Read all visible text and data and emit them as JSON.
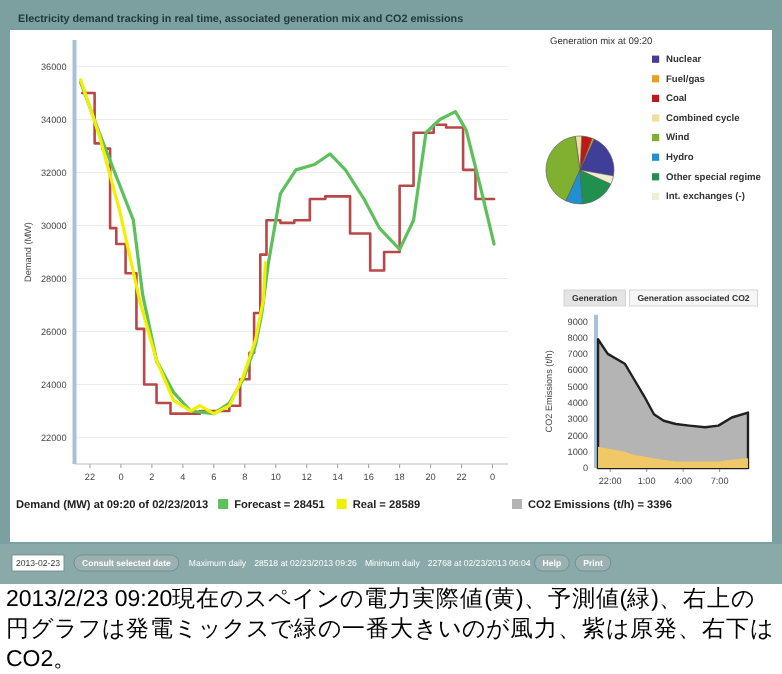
{
  "chart_data": [
    {
      "type": "line",
      "title": "Electricity demand tracking in real time, associated generation mix and CO2 emissions",
      "ylabel": "Demand (MW)",
      "legend_title": "Demand (MW) at 09:20 of 02/23/2013",
      "xlim": [
        "2013-02-22T21:00",
        "2013-02-24T01:00"
      ],
      "ylim": [
        21000,
        37000
      ],
      "xticks": [
        {
          "value": "2013-02-22T22:00",
          "label": "22"
        },
        {
          "value": "2013-02-23T00:00",
          "label": "0"
        },
        {
          "value": "2013-02-23T02:00",
          "label": "2"
        },
        {
          "value": "2013-02-23T04:00",
          "label": "4"
        },
        {
          "value": "2013-02-23T06:00",
          "label": "6"
        },
        {
          "value": "2013-02-23T08:00",
          "label": "8"
        },
        {
          "value": "2013-02-23T10:00",
          "label": "10"
        },
        {
          "value": "2013-02-23T12:00",
          "label": "12"
        },
        {
          "value": "2013-02-23T14:00",
          "label": "14"
        },
        {
          "value": "2013-02-23T16:00",
          "label": "16"
        },
        {
          "value": "2013-02-23T18:00",
          "label": "18"
        },
        {
          "value": "2013-02-23T20:00",
          "label": "20"
        },
        {
          "value": "2013-02-23T22:00",
          "label": "22"
        },
        {
          "value": "2013-02-24T00:00",
          "label": "0"
        }
      ],
      "yticks": [
        22000,
        24000,
        26000,
        28000,
        30000,
        32000,
        34000,
        36000
      ],
      "grid": "y",
      "legend": "bottom",
      "series": [
        {
          "type": "step",
          "color": "#b84848",
          "x": [
            "2013-02-22T21:30",
            "2013-02-22T22:18",
            "2013-02-22T22:48",
            "2013-02-22T23:18",
            "2013-02-22T23:42",
            "2013-02-23T00:18",
            "2013-02-23T01:00",
            "2013-02-23T01:30",
            "2013-02-23T02:18",
            "2013-02-23T03:12",
            "2013-02-23T05:06",
            "2013-02-23T06:00",
            "2013-02-23T07:00",
            "2013-02-23T07:42",
            "2013-02-23T08:18",
            "2013-02-23T08:36",
            "2013-02-23T09:00",
            "2013-02-23T09:24",
            "2013-02-23T10:18",
            "2013-02-23T11:12",
            "2013-02-23T12:12",
            "2013-02-23T13:12",
            "2013-02-23T14:48",
            "2013-02-23T16:06",
            "2013-02-23T17:00",
            "2013-02-23T18:00",
            "2013-02-23T18:54",
            "2013-02-23T20:12",
            "2013-02-23T21:00",
            "2013-02-23T22:06",
            "2013-02-23T22:54",
            "2013-02-24T00:06"
          ],
          "values": [
            35000,
            33100,
            32900,
            29900,
            29300,
            28200,
            26100,
            24000,
            23300,
            22900,
            23000,
            23000,
            23200,
            24200,
            25200,
            26700,
            28900,
            30200,
            30100,
            30200,
            31000,
            31100,
            29700,
            28300,
            29000,
            31500,
            33500,
            33800,
            33700,
            32100,
            31000,
            31000
          ]
        },
        {
          "name": "Forecast = 28451",
          "color": "#5cc05c",
          "x": [
            "2013-02-22T21:24",
            "2013-02-22T22:36",
            "2013-02-23T00:48",
            "2013-02-23T01:24",
            "2013-02-23T02:18",
            "2013-02-23T03:24",
            "2013-02-23T04:30",
            "2013-02-23T06:00",
            "2013-02-23T07:00",
            "2013-02-23T07:54",
            "2013-02-23T08:42",
            "2013-02-23T09:06",
            "2013-02-23T09:30",
            "2013-02-23T10:18",
            "2013-02-23T11:18",
            "2013-02-23T12:30",
            "2013-02-23T13:30",
            "2013-02-23T14:30",
            "2013-02-23T15:42",
            "2013-02-23T16:42",
            "2013-02-23T18:00",
            "2013-02-23T18:54",
            "2013-02-23T19:42",
            "2013-02-23T20:36",
            "2013-02-23T21:36",
            "2013-02-23T22:18",
            "2013-02-23T23:12",
            "2013-02-24T00:06"
          ],
          "values": [
            35400,
            33500,
            30200,
            27400,
            24900,
            23700,
            23000,
            22900,
            23300,
            24200,
            25500,
            26700,
            28500,
            31200,
            32100,
            32300,
            32700,
            32100,
            31000,
            29900,
            29100,
            30200,
            33500,
            34000,
            34300,
            33600,
            31500,
            29300
          ]
        },
        {
          "name": "Real = 28589",
          "color": "#f0f000",
          "x": [
            "2013-02-22T21:24",
            "2013-02-22T22:36",
            "2013-02-22T23:54",
            "2013-02-23T01:12",
            "2013-02-23T02:18",
            "2013-02-23T03:24",
            "2013-02-23T04:30",
            "2013-02-23T05:06",
            "2013-02-23T06:00",
            "2013-02-23T07:00",
            "2013-02-23T07:54",
            "2013-02-23T08:42",
            "2013-02-23T09:12",
            "2013-02-23T09:20"
          ],
          "values": [
            35500,
            33400,
            30600,
            27200,
            24900,
            23400,
            23000,
            23200,
            22900,
            23200,
            24300,
            25700,
            27200,
            28600
          ]
        }
      ],
      "annotations": [
        "2013-02-23",
        "Consult selected date",
        "Maximum daily",
        "28518 at 02/23/2013 09:26",
        "Minimum daily",
        "22768 at 02/23/2013 06:04",
        "Help",
        "Print",
        "2013/2/23 09:20現在のスペインの電力実際値(黄)、予測値(緑)、右上の円グラフは発電ミックスで緑の一番大きいのが風力、紫は原発、右下はCO2。"
      ]
    },
    {
      "type": "pie",
      "title": "Generation mix at 09:20",
      "legend": "right",
      "categories": [
        "Nuclear",
        "Fuel/gas",
        "Coal",
        "Combined cycle",
        "Wind",
        "Hydro",
        "Other special regime",
        "Int. exchanges (-)"
      ],
      "values": [
        21,
        1,
        5,
        3,
        41,
        8,
        17,
        4
      ],
      "colors": [
        "#3f3f9a",
        "#e8a020",
        "#c01818",
        "#f0e0a0",
        "#80b030",
        "#2090d0",
        "#209050",
        "#eeeed0"
      ]
    },
    {
      "type": "line",
      "ylabel": "CO2 Emissions (t/h)",
      "xlim": [
        "2013-02-22T20:50",
        "2013-02-23T09:30"
      ],
      "ylim": [
        0,
        9400
      ],
      "xticks": [
        {
          "value": "2013-02-22T22:00",
          "label": "22:00"
        },
        {
          "value": "2013-02-23T01:00",
          "label": "1:00"
        },
        {
          "value": "2013-02-23T04:00",
          "label": "4:00"
        },
        {
          "value": "2013-02-23T07:00",
          "label": "7:00"
        }
      ],
      "yticks": [
        0,
        1000,
        2000,
        3000,
        4000,
        5000,
        6000,
        7000,
        8000,
        9000
      ],
      "legend": "bottom",
      "series": [
        {
          "type": "area",
          "name": "CO2 Emissions (t/h) = 3396",
          "color": "#b4b4b4",
          "x": [
            "2013-02-22T21:00",
            "2013-02-22T21:48",
            "2013-02-22T23:12",
            "2013-02-23T00:00",
            "2013-02-23T00:48",
            "2013-02-23T01:36",
            "2013-02-23T02:24",
            "2013-02-23T03:24",
            "2013-02-23T04:30",
            "2013-02-23T05:48",
            "2013-02-23T06:54",
            "2013-02-23T08:00",
            "2013-02-23T09:20"
          ],
          "values": [
            7900,
            7000,
            6400,
            5400,
            4400,
            3300,
            2900,
            2700,
            2600,
            2500,
            2600,
            3100,
            3400
          ]
        },
        {
          "type": "area",
          "color": "#f0c868",
          "x": [
            "2013-02-22T21:00",
            "2013-02-22T21:48",
            "2013-02-22T23:12",
            "2013-02-23T00:00",
            "2013-02-23T00:48",
            "2013-02-23T01:36",
            "2013-02-23T02:24",
            "2013-02-23T03:24",
            "2013-02-23T04:30",
            "2013-02-23T05:48",
            "2013-02-23T06:54",
            "2013-02-23T08:00",
            "2013-02-23T09:20"
          ],
          "values": [
            1300,
            1200,
            1000,
            800,
            700,
            600,
            500,
            400,
            400,
            400,
            400,
            500,
            600
          ]
        }
      ],
      "annotations": [
        "Generation",
        "Generation associated CO2"
      ]
    }
  ]
}
